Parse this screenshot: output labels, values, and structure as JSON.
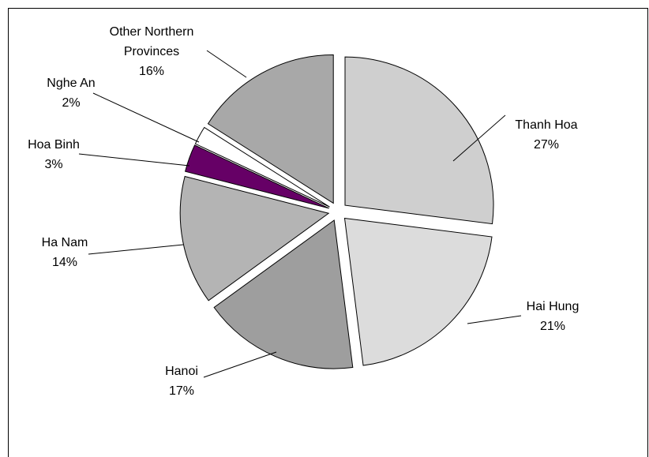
{
  "chart_data": {
    "type": "pie",
    "categories": [
      "Thanh Hoa",
      "Hai Hung",
      "Hanoi",
      "Ha Nam",
      "Hoa Binh",
      "Nghe An",
      "Other Northern Provinces"
    ],
    "values": [
      27,
      21,
      17,
      14,
      3,
      2,
      16
    ],
    "value_labels": [
      "27%",
      "21%",
      "17%",
      "14%",
      "3%",
      "2%",
      "16%"
    ],
    "colors": [
      "#cfcfcf",
      "#dcdcdc",
      "#9e9e9e",
      "#b4b4b4",
      "#660066",
      "#ffffff",
      "#a8a8a8"
    ]
  }
}
